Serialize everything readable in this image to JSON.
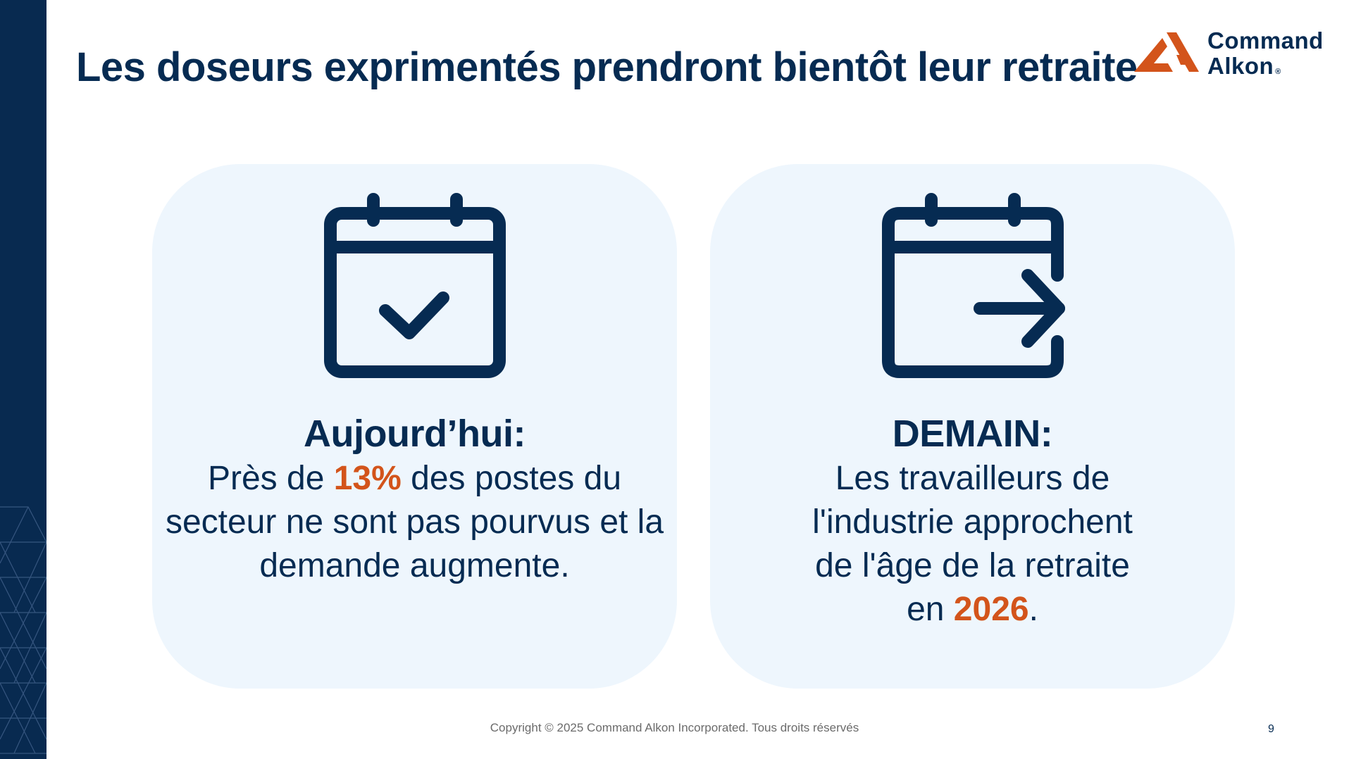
{
  "slide": {
    "title": "Les doseurs exprimentés prendront bientôt leur retraite"
  },
  "logo": {
    "line1": "Command",
    "line2": "Alkon",
    "reg_mark": "®",
    "accent_color": "#d3541b"
  },
  "cards": [
    {
      "icon": "calendar-check-icon",
      "heading": "Aujourd’hui:",
      "body_pre": "Près de ",
      "body_highlight": "13%",
      "body_post": " des postes du secteur ne sont pas pourvus et la demande augmente."
    },
    {
      "icon": "calendar-arrow-right-icon",
      "heading": "DEMAIN:",
      "body_pre": "Les travailleurs de l'industrie approchent de l'âge de la retraite en ",
      "body_highlight": "2026",
      "body_post": "."
    }
  ],
  "footer": {
    "copyright": "Copyright © 2025 Command Alkon Incorporated. Tous droits réservés",
    "page_number": "9"
  },
  "colors": {
    "navy": "#062b52",
    "orange": "#d3541b",
    "card_bg": "#eef6fd"
  }
}
